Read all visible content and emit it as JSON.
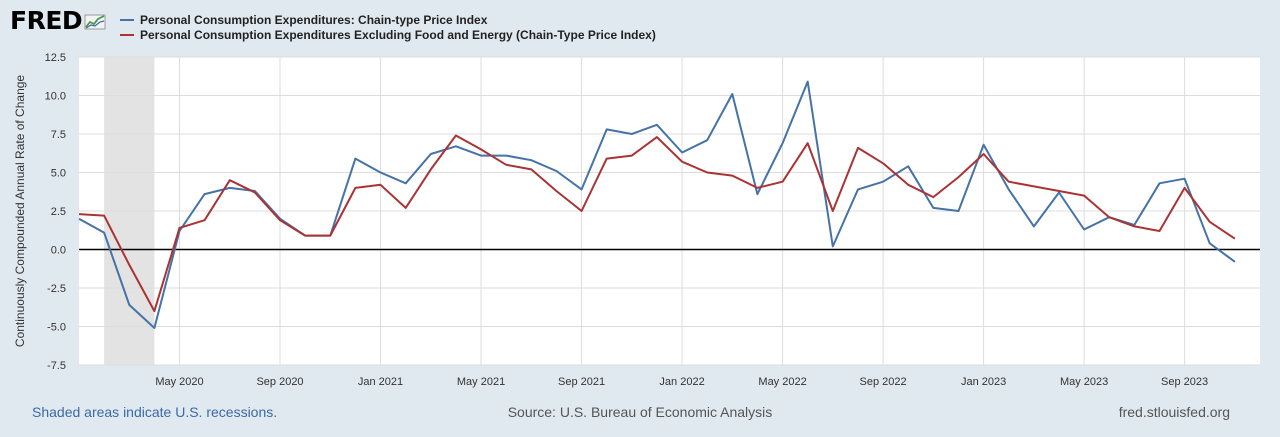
{
  "header": {
    "logo_text": "FRED",
    "logo_icon": "trend-chart-icon"
  },
  "footer": {
    "recession_note": "Shaded areas indicate U.S. recessions.",
    "source": "Source: U.S. Bureau of Economic Analysis",
    "site": "fred.stlouisfed.org"
  },
  "chart_data": {
    "type": "line",
    "title": "",
    "xlabel": "",
    "ylabel": "Continuously Compounded Annual Rate of Change",
    "ylim": [
      -7.5,
      12.5
    ],
    "yticks": [
      -7.5,
      -5.0,
      -2.5,
      0.0,
      2.5,
      5.0,
      7.5,
      10.0,
      12.5
    ],
    "x_start": "2020-01",
    "x_end": "2023-12",
    "x_ticks": [
      {
        "date": "2020-05",
        "label": "May 2020"
      },
      {
        "date": "2020-09",
        "label": "Sep 2020"
      },
      {
        "date": "2021-01",
        "label": "Jan 2021"
      },
      {
        "date": "2021-05",
        "label": "May 2021"
      },
      {
        "date": "2021-09",
        "label": "Sep 2021"
      },
      {
        "date": "2022-01",
        "label": "Jan 2022"
      },
      {
        "date": "2022-05",
        "label": "May 2022"
      },
      {
        "date": "2022-09",
        "label": "Sep 2022"
      },
      {
        "date": "2023-01",
        "label": "Jan 2023"
      },
      {
        "date": "2023-05",
        "label": "May 2023"
      },
      {
        "date": "2023-09",
        "label": "Sep 2023"
      }
    ],
    "recession": {
      "start": "2020-02",
      "end": "2020-04"
    },
    "zero_line": true,
    "grid": true,
    "legend_position": "top-left",
    "series": [
      {
        "name": "Personal Consumption Expenditures: Chain-type Price Index",
        "color": "#4572a7",
        "x": [
          "2020-01",
          "2020-02",
          "2020-03",
          "2020-04",
          "2020-05",
          "2020-06",
          "2020-07",
          "2020-08",
          "2020-09",
          "2020-10",
          "2020-11",
          "2020-12",
          "2021-01",
          "2021-02",
          "2021-03",
          "2021-04",
          "2021-05",
          "2021-06",
          "2021-07",
          "2021-08",
          "2021-09",
          "2021-10",
          "2021-11",
          "2021-12",
          "2022-01",
          "2022-02",
          "2022-03",
          "2022-04",
          "2022-05",
          "2022-06",
          "2022-07",
          "2022-08",
          "2022-09",
          "2022-10",
          "2022-11",
          "2022-12",
          "2023-01",
          "2023-02",
          "2023-03",
          "2023-04",
          "2023-05",
          "2023-06",
          "2023-07",
          "2023-08",
          "2023-09",
          "2023-10",
          "2023-11"
        ],
        "values": [
          2.0,
          1.1,
          -3.6,
          -5.1,
          1.2,
          3.6,
          4.0,
          3.8,
          2.0,
          0.9,
          0.9,
          5.9,
          5.0,
          4.3,
          6.2,
          6.7,
          6.1,
          6.1,
          5.8,
          5.1,
          3.9,
          7.8,
          7.5,
          8.1,
          6.3,
          7.1,
          10.1,
          3.6,
          6.9,
          10.9,
          0.2,
          3.9,
          4.4,
          5.4,
          2.7,
          2.5,
          6.8,
          3.9,
          1.5,
          3.7,
          1.3,
          2.1,
          1.6,
          4.3,
          4.6,
          0.4,
          -0.8
        ]
      },
      {
        "name": "Personal Consumption Expenditures Excluding Food and Energy (Chain-Type Price Index)",
        "color": "#aa3333",
        "x": [
          "2020-01",
          "2020-02",
          "2020-03",
          "2020-04",
          "2020-05",
          "2020-06",
          "2020-07",
          "2020-08",
          "2020-09",
          "2020-10",
          "2020-11",
          "2020-12",
          "2021-01",
          "2021-02",
          "2021-03",
          "2021-04",
          "2021-05",
          "2021-06",
          "2021-07",
          "2021-08",
          "2021-09",
          "2021-10",
          "2021-11",
          "2021-12",
          "2022-01",
          "2022-02",
          "2022-03",
          "2022-04",
          "2022-05",
          "2022-06",
          "2022-07",
          "2022-08",
          "2022-09",
          "2022-10",
          "2022-11",
          "2022-12",
          "2023-01",
          "2023-02",
          "2023-03",
          "2023-04",
          "2023-05",
          "2023-06",
          "2023-07",
          "2023-08",
          "2023-09",
          "2023-10",
          "2023-11"
        ],
        "values": [
          2.3,
          2.2,
          -1.0,
          -4.0,
          1.4,
          1.9,
          4.5,
          3.7,
          1.9,
          0.9,
          0.9,
          4.0,
          4.2,
          2.7,
          5.2,
          7.4,
          6.5,
          5.5,
          5.2,
          3.8,
          2.5,
          5.9,
          6.1,
          7.3,
          5.7,
          5.0,
          4.8,
          4.0,
          4.4,
          6.9,
          2.5,
          6.6,
          5.6,
          4.2,
          3.4,
          4.7,
          6.2,
          4.4,
          4.1,
          3.8,
          3.5,
          2.1,
          1.5,
          1.2,
          4.0,
          1.8,
          0.7
        ]
      }
    ]
  }
}
